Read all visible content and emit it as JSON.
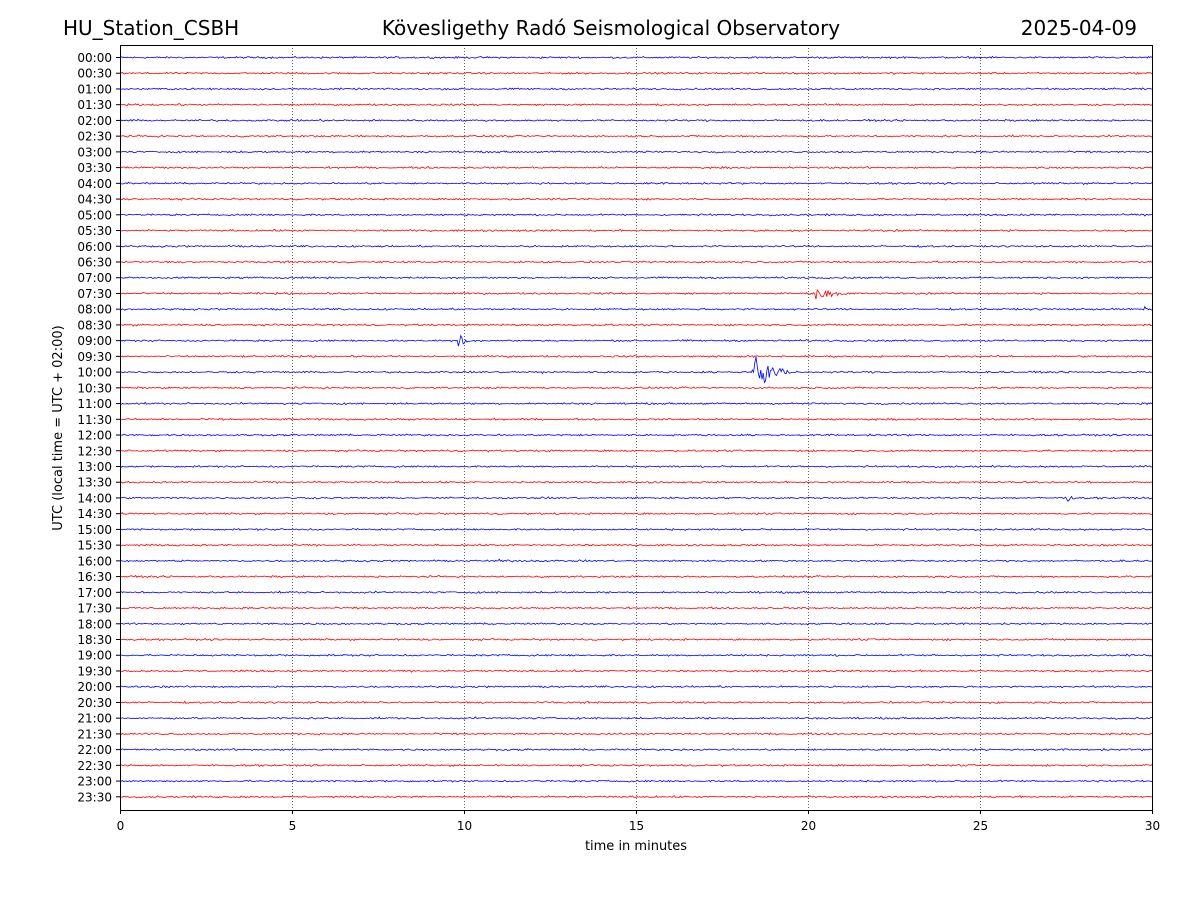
{
  "header": {
    "station": "HU_Station_CSBH",
    "title": "Kövesligethy Radó Seismological Observatory",
    "date": "2025-04-09"
  },
  "chart_data": {
    "type": "line",
    "title": "Kövesligethy Radó Seismological Observatory",
    "xlabel": "time in minutes",
    "ylabel": "UTC (local time = UTC + 02:00)",
    "xlim": [
      0,
      30
    ],
    "xticks": [
      0,
      5,
      10,
      15,
      20,
      25,
      30
    ],
    "grid": "vertical dotted lines at x ticks",
    "trace_colors": [
      "#0000ff",
      "#ff0000"
    ],
    "rows": [
      "00:00",
      "00:30",
      "01:00",
      "01:30",
      "02:00",
      "02:30",
      "03:00",
      "03:30",
      "04:00",
      "04:30",
      "05:00",
      "05:30",
      "06:00",
      "06:30",
      "07:00",
      "07:30",
      "08:00",
      "08:30",
      "09:00",
      "09:30",
      "10:00",
      "10:30",
      "11:00",
      "11:30",
      "12:00",
      "12:30",
      "13:00",
      "13:30",
      "14:00",
      "14:30",
      "15:00",
      "15:30",
      "16:00",
      "16:30",
      "17:00",
      "17:30",
      "18:00",
      "18:30",
      "19:00",
      "19:30",
      "20:00",
      "20:30",
      "21:00",
      "21:30",
      "22:00",
      "22:30",
      "23:00",
      "23:30"
    ],
    "events": [
      {
        "row": "02:00",
        "minute": 5.5,
        "amplitude": 0.1,
        "duration_min": 1.0
      },
      {
        "row": "07:30",
        "minute": 20.2,
        "amplitude": 0.5,
        "duration_min": 1.8
      },
      {
        "row": "08:00",
        "minute": 29.8,
        "amplitude": 0.25,
        "duration_min": 0.2
      },
      {
        "row": "09:00",
        "minute": 9.85,
        "amplitude": 0.85,
        "duration_min": 0.4
      },
      {
        "row": "10:00",
        "minute": 12.3,
        "amplitude": 0.15,
        "duration_min": 0.3
      },
      {
        "row": "10:00",
        "minute": 18.4,
        "amplitude": 2.0,
        "duration_min": 1.3
      },
      {
        "row": "13:30",
        "minute": 20.0,
        "amplitude": 0.12,
        "duration_min": 0.8
      },
      {
        "row": "14:00",
        "minute": 27.55,
        "amplitude": 0.35,
        "duration_min": 0.3
      },
      {
        "row": "16:00",
        "minute": 11.0,
        "amplitude": 0.1,
        "duration_min": 1.0
      },
      {
        "row": "20:30",
        "minute": 25.3,
        "amplitude": 0.15,
        "duration_min": 0.6
      }
    ]
  }
}
